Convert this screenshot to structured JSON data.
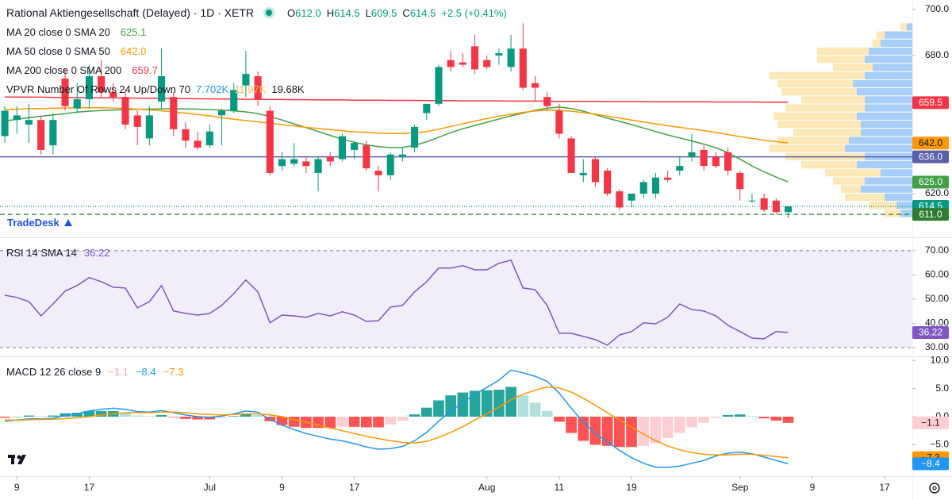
{
  "header": {
    "title": "Rational Aktiengesellschaft (Delayed) · 1D · XETR",
    "ohlc": [
      {
        "key": "O",
        "value": "612.0"
      },
      {
        "key": "H",
        "value": "614.5"
      },
      {
        "key": "L",
        "value": "609.5"
      },
      {
        "key": "C",
        "value": "614.5"
      }
    ],
    "change": "+2.5 (+0.41%)",
    "value_color": "#089981"
  },
  "vpvr": {
    "label": "VPVR Number Of Rows 24 Up/Down 70",
    "values": [
      "7.702K",
      "11.97K",
      "19.68K"
    ],
    "value_colors": [
      "#2196f3",
      "#f5c04a",
      "#131722"
    ],
    "up_color": "#90c2f5",
    "down_color": "#fde2a6",
    "up": [
      0.7,
      3.5,
      4,
      5.5,
      6,
      5,
      6,
      7.5,
      7,
      6,
      6,
      7,
      6.5,
      6.5,
      8,
      8.5,
      6,
      7,
      4,
      6,
      6.5,
      3.5,
      2,
      1.5
    ],
    "down": [
      0.8,
      1,
      1,
      6.5,
      6,
      5,
      12,
      9.5,
      9.5,
      8,
      10,
      10.5,
      10.5,
      8.5,
      9,
      9.5,
      10,
      7,
      7,
      4,
      2.5,
      5,
      3.5,
      2
    ]
  },
  "watermark": "TradeDesk",
  "chart_data": [
    {
      "type": "candlestick",
      "up_color": "#089981",
      "down_color": "#f23645",
      "open": [
        645,
        652,
        650,
        652,
        641,
        670,
        657,
        661,
        671,
        664,
        662,
        654,
        644,
        660,
        662,
        648,
        643,
        641,
        654,
        656,
        667,
        671,
        656,
        632,
        633,
        634,
        629,
        636,
        635,
        639,
        641,
        630,
        628,
        636,
        640,
        655,
        659,
        678,
        677,
        684,
        678,
        680,
        675,
        683,
        668,
        662,
        656,
        644,
        628,
        635,
        630,
        621,
        617,
        620,
        620,
        627,
        630,
        636,
        639,
        636,
        638,
        629,
        617,
        618,
        617,
        612
      ],
      "high": [
        658,
        658,
        659,
        654,
        655,
        674,
        668,
        676,
        678,
        668,
        665,
        656,
        658,
        683,
        664,
        651,
        647,
        650,
        657,
        668,
        682,
        673,
        658,
        638,
        642,
        636,
        636,
        638,
        646,
        643,
        643,
        632,
        638,
        640,
        650,
        659,
        676,
        682,
        681,
        689,
        680,
        683,
        689,
        694,
        671,
        664,
        659,
        645,
        635,
        636,
        631,
        622,
        620,
        626,
        629,
        630,
        636,
        646,
        641,
        638,
        640,
        630,
        620,
        620,
        618,
        614.5
      ],
      "low": [
        642,
        646,
        642,
        637,
        637,
        656,
        655,
        657,
        662,
        660,
        648,
        641,
        641,
        657,
        645,
        640,
        639,
        640,
        641,
        655,
        662,
        658,
        628,
        630,
        632,
        629,
        621,
        632,
        634,
        635,
        630,
        621,
        626,
        634,
        638,
        652,
        658,
        673,
        675,
        672,
        674,
        676,
        673,
        665,
        660,
        656,
        644,
        629,
        625,
        623,
        619,
        613,
        614,
        618,
        618,
        625,
        628,
        634,
        630,
        631,
        628,
        617,
        616,
        612,
        611,
        609.5
      ],
      "close": [
        656,
        654,
        652,
        639,
        652,
        658,
        661,
        671,
        664,
        662,
        650,
        649,
        654,
        671,
        648,
        643,
        640,
        647,
        656,
        665,
        672,
        661,
        629,
        635,
        635,
        632,
        635,
        634,
        645,
        642,
        631,
        628,
        637,
        637,
        649,
        659,
        675,
        675,
        676,
        674,
        675,
        681,
        683,
        666,
        666,
        658,
        646,
        629,
        629,
        625,
        620,
        614,
        620,
        625,
        627,
        626,
        632,
        638,
        632,
        632,
        630,
        622,
        617,
        613,
        612,
        614.5
      ],
      "series": [
        {
          "name": "MA 20 close 0 SMA 20",
          "value_label": "625.1",
          "color": "#43a047",
          "values": [
            651.5,
            652.3,
            653.0,
            653.6,
            654.2,
            654.8,
            655.4,
            655.8,
            656.1,
            656.3,
            656.5,
            656.6,
            656.7,
            656.8,
            656.9,
            656.8,
            656.7,
            656.5,
            656.3,
            656.0,
            655.5,
            654.8,
            653.5,
            652.0,
            650.3,
            648.7,
            647.0,
            645.3,
            643.7,
            642.3,
            641.2,
            640.4,
            640.0,
            640.1,
            641.0,
            642.5,
            644.5,
            646.5,
            648.2,
            649.6,
            651.0,
            652.4,
            653.8,
            655.0,
            656.2,
            657.1,
            657.6,
            657.0,
            655.8,
            654.3,
            652.8,
            651.4,
            650.0,
            648.5,
            647.0,
            645.5,
            644.2,
            642.9,
            641.5,
            640.0,
            637.8,
            635.0,
            632.0,
            629.5,
            627.2,
            625.1
          ]
        },
        {
          "name": "MA 50 close 0 SMA 50",
          "value_label": "642.0",
          "color": "#ff9800",
          "values": [
            656.5,
            656.7,
            656.9,
            657.0,
            657.1,
            657.2,
            657.3,
            657.3,
            657.3,
            657.2,
            657.0,
            656.7,
            656.4,
            656.0,
            655.5,
            655.0,
            654.4,
            653.8,
            653.0,
            652.3,
            651.7,
            651.2,
            650.6,
            650.0,
            649.4,
            648.8,
            648.3,
            647.8,
            647.3,
            646.9,
            646.6,
            646.3,
            646.1,
            646.1,
            646.4,
            647.0,
            648.0,
            649.2,
            650.4,
            651.5,
            652.6,
            653.6,
            654.5,
            655.3,
            655.9,
            656.3,
            656.2,
            655.8,
            655.2,
            654.5,
            653.7,
            652.8,
            652.0,
            651.1,
            650.3,
            649.5,
            648.8,
            648.1,
            647.4,
            646.6,
            645.7,
            644.8,
            644.0,
            643.2,
            642.6,
            642.0
          ]
        },
        {
          "name": "MA 200 close 0 SMA 200",
          "value_label": "659.7",
          "color": "#f23645",
          "values": [
            662.0,
            662.0,
            661.9,
            661.9,
            661.8,
            661.8,
            661.7,
            661.7,
            661.6,
            661.6,
            661.5,
            661.5,
            661.4,
            661.4,
            661.3,
            661.3,
            661.2,
            661.2,
            661.1,
            661.1,
            661.0,
            661.0,
            660.9,
            660.9,
            660.8,
            660.8,
            660.7,
            660.7,
            660.7,
            660.6,
            660.6,
            660.6,
            660.5,
            660.5,
            660.5,
            660.4,
            660.4,
            660.4,
            660.3,
            660.3,
            660.3,
            660.3,
            660.2,
            660.2,
            660.2,
            660.2,
            660.1,
            660.1,
            660.1,
            660.1,
            660.0,
            660.0,
            660.0,
            660.0,
            659.9,
            659.9,
            659.9,
            659.9,
            659.9,
            659.8,
            659.8,
            659.8,
            659.8,
            659.7,
            659.7,
            659.7
          ]
        }
      ],
      "xlim": [
        -0.4,
        75.3
      ],
      "xticks": [
        {
          "value": 1,
          "label": "9"
        },
        {
          "value": 7,
          "label": "17"
        },
        {
          "value": 17,
          "label": "Jul"
        },
        {
          "value": 23,
          "label": "9"
        },
        {
          "value": 29,
          "label": "17"
        },
        {
          "value": 40,
          "label": "Aug"
        },
        {
          "value": 46,
          "label": "11"
        },
        {
          "value": 52,
          "label": "19"
        },
        {
          "value": 61,
          "label": "Sep"
        },
        {
          "value": 67,
          "label": "9"
        },
        {
          "value": 73,
          "label": "17"
        }
      ],
      "ylim": [
        601.4,
        704.1
      ],
      "yticks": [
        {
          "value": 700,
          "label": "700.0"
        },
        {
          "value": 680,
          "label": "680.0"
        },
        {
          "value": 620,
          "label": "620.0"
        }
      ],
      "hlines": [
        {
          "value": 636,
          "color": "#5b5fa8",
          "dash": "none"
        },
        {
          "value": 614.5,
          "color": "#089981",
          "dash": "1 2"
        },
        {
          "value": 611,
          "color": "#2e7d32",
          "dash": "6 4"
        }
      ],
      "badges": [
        {
          "value": 659.5,
          "color": "#f23645",
          "text_color": "#ffffff"
        },
        {
          "value": 642,
          "label": "642.0",
          "color": "#ff9800",
          "text_color": "#131722"
        },
        {
          "value": 636,
          "label": "636.0",
          "color": "#5b5fa8",
          "text_color": "#ffffff"
        },
        {
          "value": 625,
          "label": "625.0",
          "color": "#43a047",
          "text_color": "#ffffff"
        },
        {
          "value": 614.5,
          "color": "#089981",
          "text_color": "#ffffff"
        },
        {
          "value": 611,
          "label": "611.0",
          "color": "#2e7d32",
          "text_color": "#ffffff"
        }
      ]
    },
    {
      "type": "line",
      "title": "RSI 14 SMA 14",
      "series": [
        {
          "value_label": "36.22",
          "color": "#7e57c2",
          "values": [
            51.6,
            50.7,
            49,
            43.1,
            48,
            53.3,
            55.6,
            58.9,
            57.2,
            54.9,
            54.6,
            46.4,
            49,
            55.6,
            45.1,
            44.1,
            43.4,
            44.1,
            47.4,
            52.3,
            57.9,
            53,
            40.2,
            43.4,
            43.1,
            42.5,
            44.1,
            43.1,
            44.8,
            43.4,
            40.8,
            41.1,
            46.7,
            47.4,
            53,
            57.2,
            62.8,
            62.8,
            63.8,
            62.1,
            62.1,
            64.8,
            66.1,
            54.6,
            53.9,
            47.4,
            35.9,
            35.9,
            34.6,
            33.3,
            31,
            35.2,
            36.6,
            40.2,
            39.8,
            42.5,
            48,
            45.7,
            45.1,
            43.1,
            39.2,
            36.6,
            33.9,
            33.6,
            36.6,
            36.22
          ]
        }
      ],
      "band": [
        30,
        70
      ],
      "band_color": "#7e57c2",
      "ylim": [
        26.7,
        75.2
      ],
      "yticks": [
        {
          "value": 70,
          "label": "70.00"
        },
        {
          "value": 60,
          "label": "60.00"
        },
        {
          "value": 50,
          "label": "50.00"
        },
        {
          "value": 40,
          "label": "40.00"
        },
        {
          "value": 30,
          "label": "30.00"
        }
      ],
      "badges": [
        {
          "value": 36.22,
          "color": "#7e57c2",
          "text_color": "#ffffff"
        }
      ]
    },
    {
      "type": "macd",
      "title": "MACD 12 26 close 9",
      "series": [
        {
          "kind": "histogram",
          "value_label": "−1.1",
          "color": "#f7a1a9",
          "values": [
            -0.2,
            0.0,
            0.2,
            0.1,
            0.2,
            0.6,
            0.7,
            1.0,
            1.0,
            1.0,
            0.6,
            0.2,
            0.1,
            0.3,
            -0.1,
            -0.4,
            -0.5,
            -0.5,
            -0.2,
            0.1,
            0.5,
            0.3,
            -0.8,
            -1.5,
            -1.8,
            -2.0,
            -2.0,
            -2.0,
            -1.8,
            -1.8,
            -1.9,
            -1.9,
            -1.4,
            -0.7,
            0.4,
            1.6,
            2.9,
            3.8,
            4.3,
            4.6,
            4.7,
            4.8,
            5.3,
            3.8,
            2.5,
            1.0,
            -0.9,
            -2.9,
            -4.3,
            -5.0,
            -5.2,
            -5.4,
            -5.4,
            -5.2,
            -4.7,
            -3.8,
            -2.9,
            -1.9,
            -1.1,
            -0.2,
            0.3,
            0.4,
            0.1,
            -0.3,
            -0.7,
            -1.1
          ]
        },
        {
          "kind": "line",
          "value_label": "−8.4",
          "color": "#2196f3",
          "values": [
            -0.8,
            -0.6,
            -0.4,
            -0.4,
            -0.3,
            0.2,
            0.5,
            1.0,
            1.3,
            1.5,
            1.3,
            0.9,
            0.8,
            1.1,
            0.7,
            0.3,
            0.0,
            -0.1,
            0.1,
            0.5,
            1.0,
            0.8,
            -0.5,
            -1.5,
            -2.3,
            -3.0,
            -3.5,
            -4.0,
            -4.3,
            -4.8,
            -5.4,
            -5.8,
            -5.7,
            -5.3,
            -4.3,
            -2.8,
            -0.8,
            1.0,
            2.5,
            4.0,
            5.2,
            6.5,
            8.3,
            7.8,
            7.2,
            6.3,
            4.2,
            1.5,
            -1.0,
            -3.0,
            -4.5,
            -6.0,
            -7.3,
            -8.3,
            -9.0,
            -9.0,
            -8.8,
            -8.3,
            -7.8,
            -7.0,
            -6.5,
            -6.3,
            -6.6,
            -7.2,
            -7.8,
            -8.4
          ]
        },
        {
          "kind": "line",
          "value_label": "−7.3",
          "color": "#ff9800",
          "values": [
            -0.6,
            -0.6,
            -0.55,
            -0.5,
            -0.45,
            -0.35,
            -0.2,
            0.0,
            0.3,
            0.5,
            0.7,
            0.7,
            0.7,
            0.8,
            0.8,
            0.7,
            0.5,
            0.4,
            0.3,
            0.4,
            0.5,
            0.5,
            0.3,
            0.0,
            -0.5,
            -1.0,
            -1.5,
            -2.0,
            -2.5,
            -3.0,
            -3.5,
            -3.9,
            -4.3,
            -4.6,
            -4.7,
            -4.4,
            -3.7,
            -2.8,
            -1.8,
            -0.6,
            0.5,
            1.7,
            3.0,
            4.0,
            4.7,
            5.3,
            5.1,
            4.4,
            3.3,
            2.0,
            0.7,
            -0.6,
            -1.9,
            -3.1,
            -4.3,
            -5.2,
            -5.9,
            -6.4,
            -6.7,
            -6.8,
            -6.8,
            -6.7,
            -6.7,
            -6.9,
            -7.1,
            -7.3
          ]
        }
      ],
      "hist_colors": {
        "rising_above": "#26a69a",
        "falling_above": "#b2dfdb",
        "falling_below": "#ff5252",
        "rising_below": "#ffcdd2"
      },
      "ylim": [
        -10.6,
        10.6
      ],
      "yticks": [
        {
          "value": 10,
          "label": "10.0"
        },
        {
          "value": 5,
          "label": "5.0"
        },
        {
          "value": 0,
          "label": "0.0"
        },
        {
          "value": -5,
          "label": "−5.0"
        }
      ],
      "badges": [
        {
          "value": -1.1,
          "label": "−1.1",
          "color": "#ffcdd2",
          "text_color": "#131722"
        },
        {
          "value": -7.3,
          "label": "−7.3",
          "color": "#ff9800",
          "text_color": "#131722"
        },
        {
          "value": -8.4,
          "label": "−8.4",
          "color": "#2196f3",
          "text_color": "#ffffff"
        }
      ]
    }
  ]
}
